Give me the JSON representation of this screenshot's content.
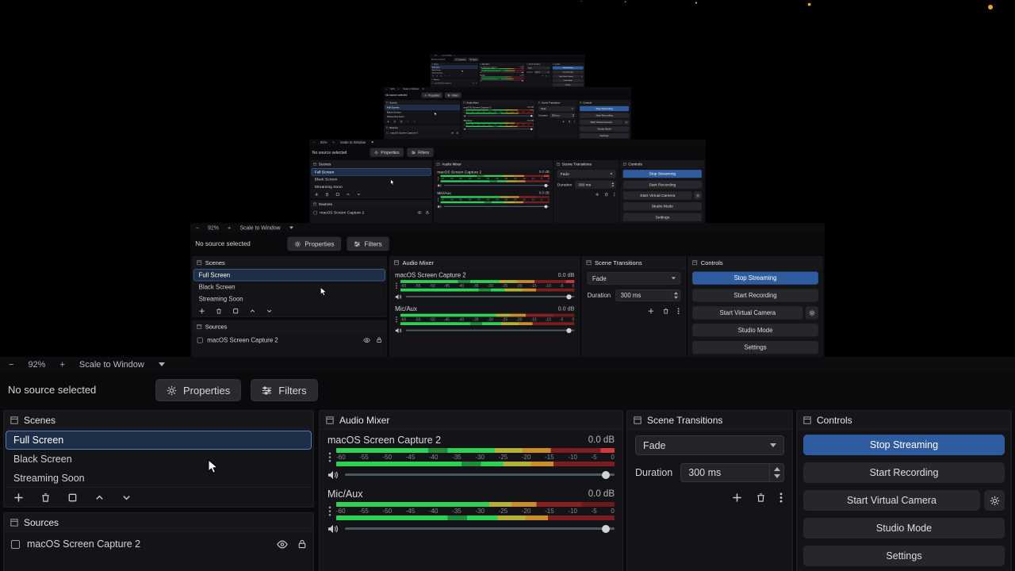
{
  "statusbar": {
    "zoom_out": "−",
    "zoom_level": "92%",
    "zoom_in": "+",
    "scale_mode": "Scale to Window"
  },
  "source_toolbar": {
    "no_source": "No source selected",
    "properties": "Properties",
    "filters": "Filters"
  },
  "scenes": {
    "title": "Scenes",
    "items": [
      {
        "label": "Full Screen",
        "selected": true
      },
      {
        "label": "Black Screen",
        "selected": false
      },
      {
        "label": "Streaming Soon",
        "selected": false
      }
    ]
  },
  "sources": {
    "title": "Sources",
    "items": [
      {
        "label": "macOS Screen Capture 2"
      }
    ]
  },
  "mixer": {
    "title": "Audio Mixer",
    "channels": [
      {
        "name": "macOS Screen Capture 2",
        "db": "0.0 dB"
      },
      {
        "name": "Mic/Aux",
        "db": "0.0 dB"
      }
    ],
    "ticks": [
      "-60",
      "-55",
      "-50",
      "-45",
      "-40",
      "-35",
      "-30",
      "-25",
      "-20",
      "-15",
      "-10",
      "-5",
      "0"
    ]
  },
  "transitions": {
    "title": "Scene Transitions",
    "transition": "Fade",
    "duration_label": "Duration",
    "duration_value": "300 ms"
  },
  "controls": {
    "title": "Controls",
    "buttons": [
      "Stop Streaming",
      "Start Recording",
      "Start Virtual Camera",
      "Studio Mode",
      "Settings"
    ]
  },
  "colors": {
    "accent_blue": "#2e5c9e",
    "selected_scene_border": "#4d80bd",
    "meter_green": "#2ed153",
    "meter_yellow": "#b3b136",
    "meter_red": "#7d1e1e",
    "recording_indicator": "#e8a33d"
  }
}
